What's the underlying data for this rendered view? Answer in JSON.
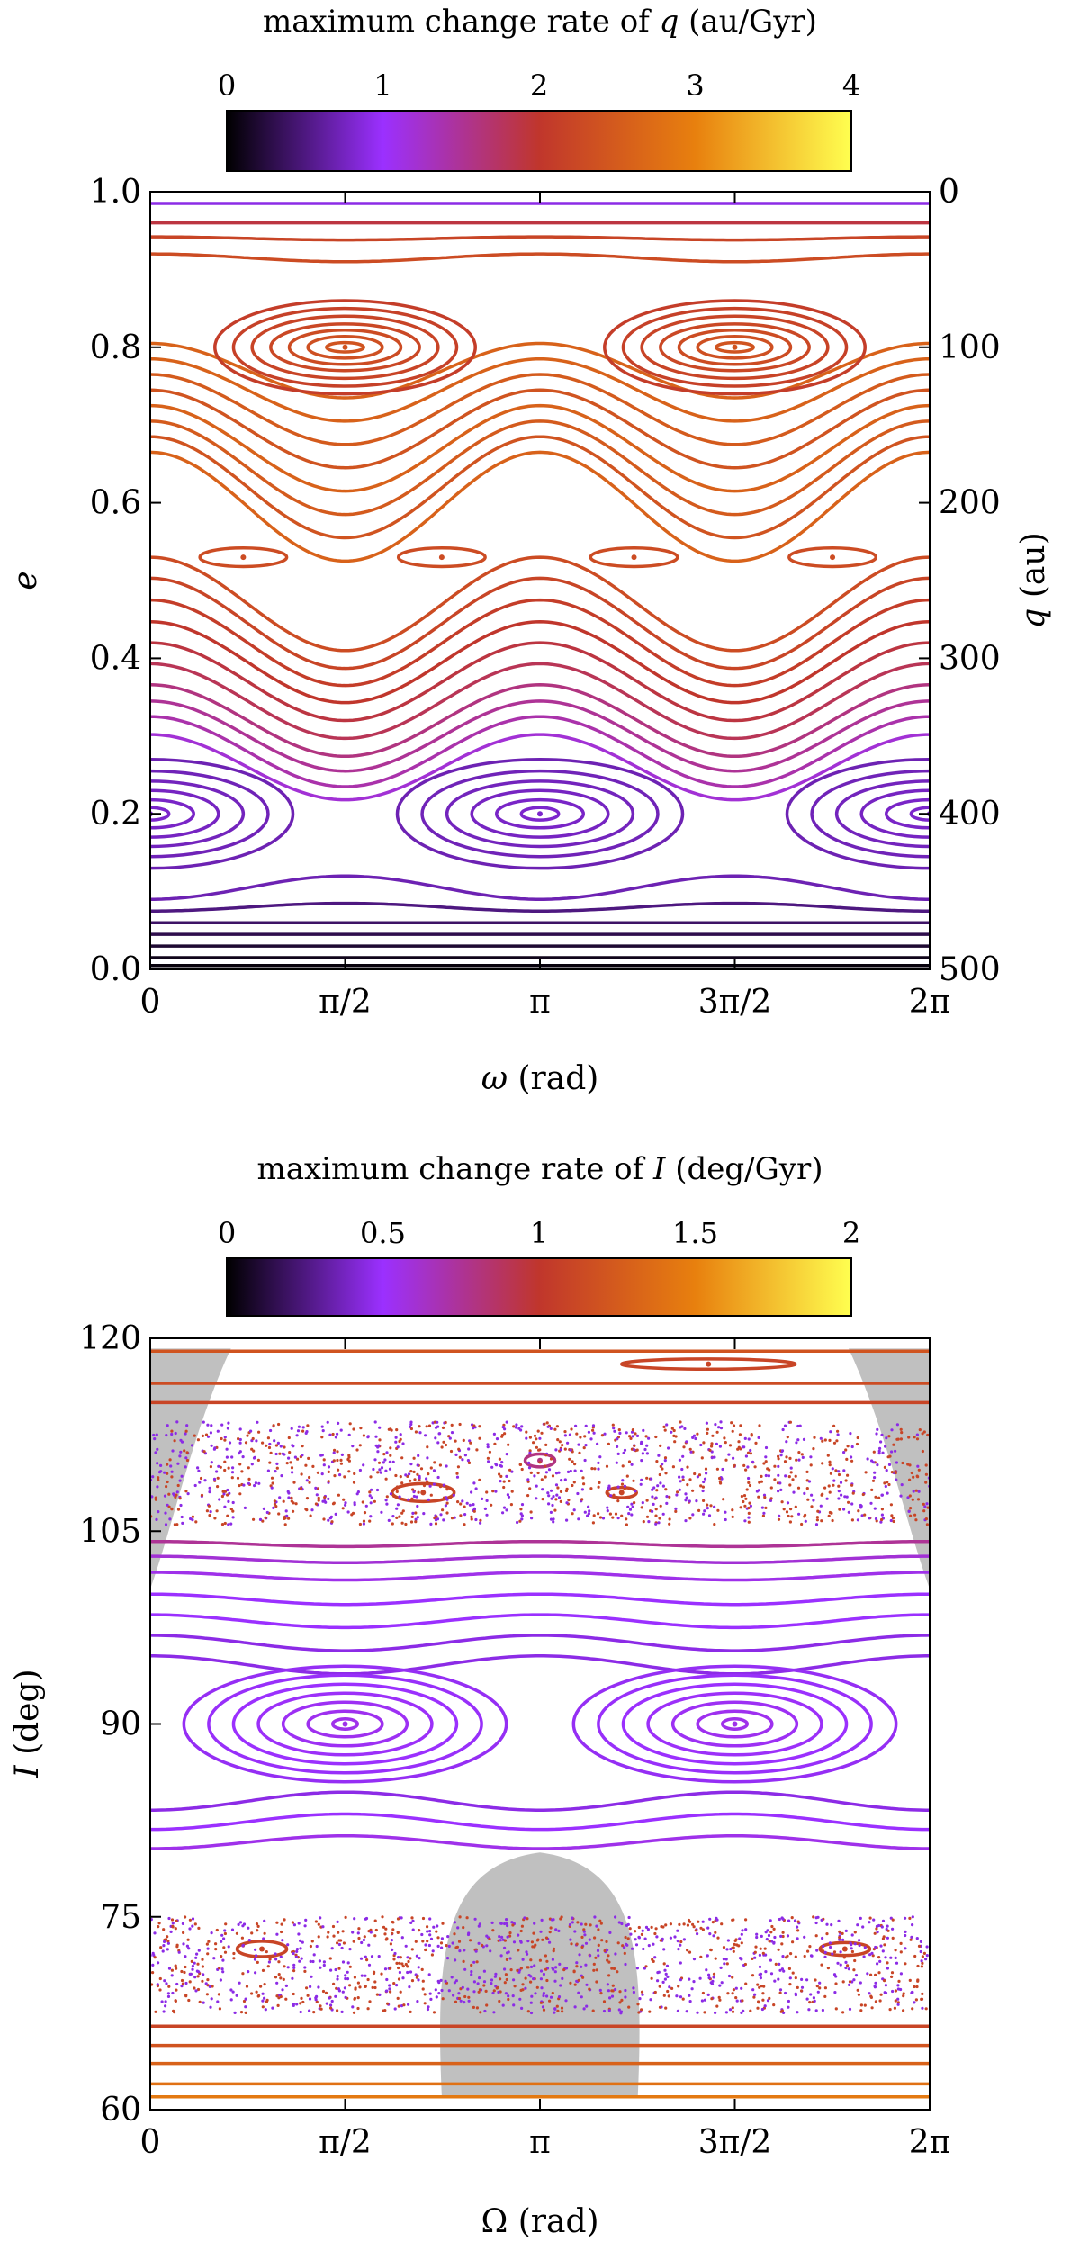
{
  "chart_data": [
    {
      "type": "scatter",
      "subtype": "poincare-section",
      "colorbar": {
        "title_prefix": "maximum change rate of",
        "title_var": "q",
        "title_unit": "(au/Gyr)",
        "ticks": [
          "0",
          "1",
          "2",
          "3",
          "4"
        ],
        "range": [
          0,
          4
        ],
        "colormap": [
          "#000000",
          "#9b30ff",
          "#c0362c",
          "#e8800e",
          "#ffff50"
        ]
      },
      "x_axis": {
        "label_var": "ω",
        "label_unit": "(rad)",
        "ticks": [
          "0",
          "π/2",
          "π",
          "3π/2",
          "2π"
        ],
        "range": [
          0,
          6.2832
        ]
      },
      "y_axis": {
        "label_var": "e",
        "ticks": [
          "0.0",
          "0.2",
          "0.4",
          "0.6",
          "0.8",
          "1.0"
        ],
        "range": [
          0.0,
          1.0
        ]
      },
      "y2_axis": {
        "label_var": "q",
        "label_unit": "(au)",
        "ticks": [
          "500",
          "400",
          "300",
          "200",
          "100",
          "0"
        ],
        "range": [
          500,
          0
        ]
      },
      "wavy_curves": [
        {
          "e": 0.985,
          "amp": 0.0,
          "rate": 0.9
        },
        {
          "e": 0.96,
          "amp": 0.0,
          "rate": 1.9
        },
        {
          "e": 0.94,
          "amp": 0.002,
          "rate": 2.2
        },
        {
          "e": 0.915,
          "amp": 0.005,
          "rate": 2.3
        },
        {
          "e": 0.77,
          "amp": 0.035,
          "rate": 2.6
        },
        {
          "e": 0.745,
          "amp": 0.04,
          "rate": 2.6
        },
        {
          "e": 0.72,
          "amp": 0.045,
          "rate": 2.5
        },
        {
          "e": 0.695,
          "amp": 0.05,
          "rate": 2.4
        },
        {
          "e": 0.67,
          "amp": 0.055,
          "rate": 2.6
        },
        {
          "e": 0.645,
          "amp": 0.06,
          "rate": 2.5
        },
        {
          "e": 0.62,
          "amp": 0.065,
          "rate": 2.4
        },
        {
          "e": 0.595,
          "amp": 0.07,
          "rate": 2.6
        },
        {
          "e": 0.47,
          "amp": 0.06,
          "rate": 2.3
        },
        {
          "e": 0.445,
          "amp": 0.058,
          "rate": 2.2
        },
        {
          "e": 0.42,
          "amp": 0.055,
          "rate": 2.1
        },
        {
          "e": 0.395,
          "amp": 0.052,
          "rate": 2.0
        },
        {
          "e": 0.37,
          "amp": 0.05,
          "rate": 1.9
        },
        {
          "e": 0.345,
          "amp": 0.048,
          "rate": 1.8
        },
        {
          "e": 0.32,
          "amp": 0.046,
          "rate": 1.6
        },
        {
          "e": 0.3,
          "amp": 0.045,
          "rate": 1.5
        },
        {
          "e": 0.28,
          "amp": 0.045,
          "rate": 1.4
        },
        {
          "e": 0.26,
          "amp": 0.042,
          "rate": 1.2
        },
        {
          "e": 0.105,
          "amp": -0.015,
          "rate": 0.7
        },
        {
          "e": 0.08,
          "amp": -0.005,
          "rate": 0.5
        },
        {
          "e": 0.06,
          "amp": 0.0,
          "rate": 0.4
        },
        {
          "e": 0.045,
          "amp": 0.0,
          "rate": 0.3
        },
        {
          "e": 0.03,
          "amp": 0.0,
          "rate": 0.2
        },
        {
          "e": 0.015,
          "amp": 0.0,
          "rate": 0.1
        },
        {
          "e": 0.005,
          "amp": 0.0,
          "rate": 0.05
        }
      ],
      "islands": [
        {
          "cx": 1.5708,
          "cy": 0.8,
          "rx": [
            0.15,
            0.3,
            0.45,
            0.6,
            0.75,
            0.9,
            1.05
          ],
          "ry": [
            0.006,
            0.014,
            0.022,
            0.03,
            0.04,
            0.05,
            0.06
          ],
          "rate": 2.4
        },
        {
          "cx": 4.7124,
          "cy": 0.8,
          "rx": [
            0.15,
            0.3,
            0.45,
            0.6,
            0.75,
            0.9,
            1.05
          ],
          "ry": [
            0.006,
            0.014,
            0.022,
            0.03,
            0.04,
            0.05,
            0.06
          ],
          "rate": 2.4
        },
        {
          "cx": 3.1416,
          "cy": 0.2,
          "rx": [
            0.15,
            0.35,
            0.55,
            0.75,
            0.95,
            1.15
          ],
          "ry": [
            0.008,
            0.018,
            0.03,
            0.042,
            0.055,
            0.07
          ],
          "rate": 0.8
        },
        {
          "cx": 0.0,
          "cy": 0.2,
          "rx": [
            0.15,
            0.35,
            0.55,
            0.75,
            0.95,
            1.15
          ],
          "ry": [
            0.008,
            0.018,
            0.03,
            0.042,
            0.055,
            0.07
          ],
          "rate": 0.8
        },
        {
          "cx": 6.2832,
          "cy": 0.2,
          "rx": [
            0.15,
            0.35,
            0.55,
            0.75,
            0.95,
            1.15
          ],
          "ry": [
            0.008,
            0.018,
            0.03,
            0.042,
            0.055,
            0.07
          ],
          "rate": 0.8
        },
        {
          "cx": 0.75,
          "cy": 0.53,
          "rx": [
            0.35
          ],
          "ry": [
            0.012
          ],
          "rate": 2.3
        },
        {
          "cx": 2.35,
          "cy": 0.53,
          "rx": [
            0.35
          ],
          "ry": [
            0.012
          ],
          "rate": 2.3
        },
        {
          "cx": 3.9,
          "cy": 0.53,
          "rx": [
            0.35
          ],
          "ry": [
            0.012
          ],
          "rate": 2.3
        },
        {
          "cx": 5.5,
          "cy": 0.53,
          "rx": [
            0.35
          ],
          "ry": [
            0.012
          ],
          "rate": 2.3
        }
      ]
    },
    {
      "type": "scatter",
      "subtype": "poincare-section",
      "colorbar": {
        "title_prefix": "maximum change rate of",
        "title_var": "I",
        "title_unit": "(deg/Gyr)",
        "ticks": [
          "0",
          "0.5",
          "1",
          "1.5",
          "2"
        ],
        "range": [
          0,
          2
        ],
        "colormap": [
          "#000000",
          "#9b30ff",
          "#c0362c",
          "#e8800e",
          "#ffff50"
        ]
      },
      "x_axis": {
        "label_var": "Ω",
        "label_unit": "(rad)",
        "ticks": [
          "0",
          "π/2",
          "π",
          "3π/2",
          "2π"
        ],
        "range": [
          0,
          6.2832
        ]
      },
      "y_axis": {
        "label_var": "I",
        "label_unit": "(deg)",
        "ticks": [
          "60",
          "75",
          "90",
          "105",
          "120"
        ],
        "range": [
          60,
          120
        ]
      },
      "wavy_curves": [
        {
          "I": 119.0,
          "amp": 0.0,
          "rate": 1.2
        },
        {
          "I": 116.5,
          "amp": 0.0,
          "rate": 1.15
        },
        {
          "I": 115.0,
          "amp": 0.0,
          "rate": 1.1
        },
        {
          "I": 104.0,
          "amp": 0.2,
          "rate": 0.75
        },
        {
          "I": 102.8,
          "amp": 0.25,
          "rate": 0.6
        },
        {
          "I": 101.5,
          "amp": 0.3,
          "rate": 0.55
        },
        {
          "I": 99.7,
          "amp": 0.4,
          "rate": 0.5
        },
        {
          "I": 98.0,
          "amp": 0.5,
          "rate": 0.5
        },
        {
          "I": 96.3,
          "amp": 0.6,
          "rate": 0.45
        },
        {
          "I": 94.6,
          "amp": 0.7,
          "rate": 0.45
        },
        {
          "I": 84.0,
          "amp": -0.7,
          "rate": 0.45
        },
        {
          "I": 82.4,
          "amp": -0.6,
          "rate": 0.5
        },
        {
          "I": 80.8,
          "amp": -0.5,
          "rate": 0.55
        },
        {
          "I": 66.5,
          "amp": 0.0,
          "rate": 1.1
        },
        {
          "I": 65.0,
          "amp": 0.0,
          "rate": 1.2
        },
        {
          "I": 63.6,
          "amp": 0.0,
          "rate": 1.3
        },
        {
          "I": 62.0,
          "amp": 0.0,
          "rate": 1.4
        },
        {
          "I": 61.0,
          "amp": 0.0,
          "rate": 1.45
        }
      ],
      "islands": [
        {
          "cx": 1.5708,
          "cy": 90.0,
          "rx": [
            0.1,
            0.3,
            0.5,
            0.7,
            0.9,
            1.1,
            1.3
          ],
          "ry": [
            0.4,
            1.0,
            1.7,
            2.4,
            3.1,
            3.8,
            4.5
          ],
          "rate": 0.55
        },
        {
          "cx": 4.7124,
          "cy": 90.0,
          "rx": [
            0.1,
            0.3,
            0.5,
            0.7,
            0.9,
            1.1,
            1.3
          ],
          "ry": [
            0.4,
            1.0,
            1.7,
            2.4,
            3.1,
            3.8,
            4.5
          ],
          "rate": 0.55
        },
        {
          "cx": 2.2,
          "cy": 108.0,
          "rx": [
            0.25
          ],
          "ry": [
            0.7
          ],
          "rate": 1.1
        },
        {
          "cx": 3.1416,
          "cy": 110.5,
          "rx": [
            0.12
          ],
          "ry": [
            0.5
          ],
          "rate": 0.8
        },
        {
          "cx": 3.8,
          "cy": 108.0,
          "rx": [
            0.12
          ],
          "ry": [
            0.4
          ],
          "rate": 1.1
        },
        {
          "cx": 4.5,
          "cy": 118.0,
          "rx": [
            0.7
          ],
          "ry": [
            0.4
          ],
          "rate": 1.1
        },
        {
          "cx": 0.9,
          "cy": 72.5,
          "rx": [
            0.2
          ],
          "ry": [
            0.6
          ],
          "rate": 1.1
        },
        {
          "cx": 5.6,
          "cy": 72.5,
          "rx": [
            0.2
          ],
          "ry": [
            0.5
          ],
          "rate": 1.1
        }
      ],
      "chaotic_bands": [
        {
          "I_min": 105.5,
          "I_max": 113.5,
          "rates": [
            0.45,
            1.1
          ]
        },
        {
          "I_min": 67.5,
          "I_max": 75.0,
          "rates": [
            0.45,
            1.1
          ]
        }
      ],
      "excluded_regions": [
        {
          "name": "left-upper",
          "color": "#c0c0c0"
        },
        {
          "name": "right-upper",
          "color": "#c0c0c0"
        },
        {
          "name": "center-lower",
          "color": "#c0c0c0"
        }
      ]
    }
  ]
}
